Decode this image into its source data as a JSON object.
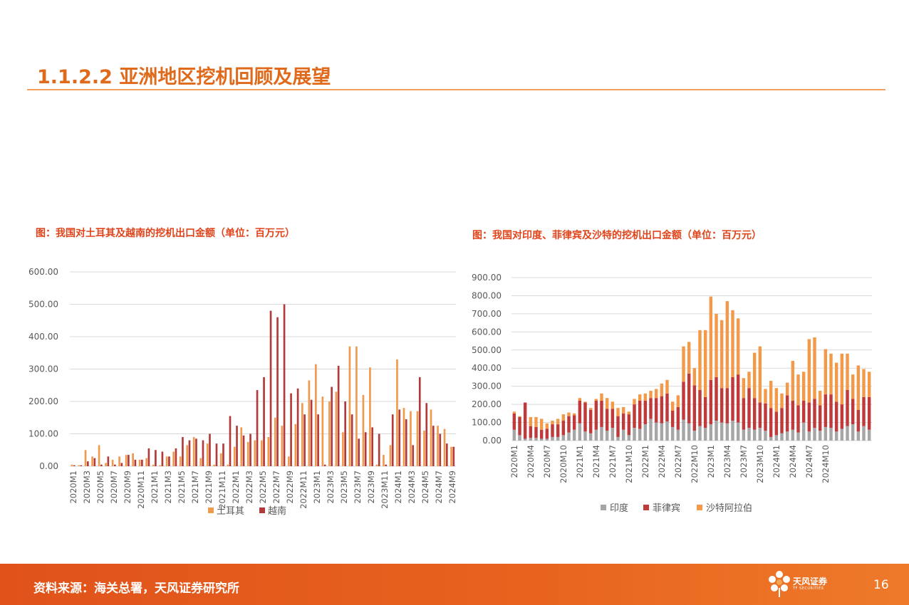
{
  "section": {
    "title": "1.1.2.2 亚洲地区挖机回顾及展望"
  },
  "figures": [
    {
      "caption": "图：我国对土耳其及越南的挖机出口金额（单位：百万元）"
    },
    {
      "caption": "图：我国对印度、菲律宾及沙特的挖机出口金额（单位：百万元）"
    }
  ],
  "footer": {
    "source": "资料来源：海关总署，天风证券研究所",
    "page": "16",
    "logo_cn": "天风证券",
    "logo_en": "TF SECURITIES"
  },
  "colors": {
    "turkey": "#F09A4E",
    "vietnam": "#B23A3A",
    "india": "#A6A6A6",
    "philippines": "#C0393B",
    "saudi": "#F29A4A",
    "accent": "#E06A1B"
  },
  "chart_data": [
    {
      "type": "bar",
      "title": "",
      "ylim": [
        0,
        600
      ],
      "yticks": [
        "0.00",
        "100.00",
        "200.00",
        "300.00",
        "400.00",
        "500.00",
        "600.00"
      ],
      "x_tick_labels": [
        "2020M1",
        "2020M3",
        "2020M5",
        "2020M7",
        "2020M9",
        "2020M11",
        "2021M1",
        "2021M3",
        "2021M5",
        "2021M7",
        "2021M9",
        "2021M11",
        "2022M1",
        "2022M3",
        "2022M5",
        "2022M7",
        "2022M9",
        "2022M11",
        "2023M1",
        "2023M3",
        "2023M5",
        "2023M7",
        "2023M9",
        "2023M11",
        "2024M1",
        "2024M3",
        "2024M5",
        "2024M7",
        "2024M9"
      ],
      "legend_position": "bottom",
      "series": [
        {
          "name": "土耳其",
          "values": [
            5,
            3,
            50,
            30,
            65,
            10,
            20,
            30,
            35,
            40,
            20,
            25,
            5,
            3,
            30,
            45,
            30,
            65,
            90,
            25,
            70,
            5,
            40,
            5,
            60,
            120,
            75,
            80,
            80,
            90,
            150,
            125,
            30,
            130,
            195,
            265,
            315,
            215,
            200,
            230,
            105,
            370,
            370,
            220,
            305,
            5,
            35,
            65,
            330,
            180,
            170,
            170,
            110,
            175,
            125,
            115,
            60
          ]
        },
        {
          "name": "越南",
          "values": [
            3,
            3,
            15,
            25,
            5,
            30,
            5,
            10,
            35,
            20,
            20,
            55,
            50,
            45,
            30,
            55,
            90,
            80,
            85,
            80,
            100,
            70,
            70,
            155,
            125,
            95,
            100,
            235,
            275,
            480,
            460,
            500,
            225,
            240,
            160,
            205,
            160,
            5,
            245,
            310,
            200,
            160,
            85,
            105,
            120,
            100,
            5,
            160,
            175,
            145,
            65,
            275,
            195,
            125,
            100,
            70,
            60
          ]
        }
      ]
    },
    {
      "type": "bar",
      "stacked": true,
      "title": "",
      "ylim": [
        0,
        900
      ],
      "yticks": [
        "0.00",
        "100.00",
        "200.00",
        "300.00",
        "400.00",
        "500.00",
        "600.00",
        "700.00",
        "800.00",
        "900.00"
      ],
      "x_tick_labels": [
        "2020M1",
        "2020M4",
        "2020M7",
        "2020M10",
        "2021M1",
        "2021M4",
        "2021M7",
        "2021M10",
        "2022M1",
        "2022M4",
        "2022M7",
        "2022M10",
        "2023M1",
        "2023M4",
        "2023M7",
        "2023M10",
        "2024M1",
        "2024M4",
        "2024M7",
        "2024M10"
      ],
      "legend_position": "bottom",
      "series": [
        {
          "name": "印度",
          "values": [
            60,
            30,
            10,
            15,
            15,
            10,
            10,
            20,
            20,
            30,
            45,
            60,
            95,
            50,
            40,
            60,
            75,
            55,
            70,
            20,
            60,
            30,
            70,
            65,
            90,
            120,
            100,
            95,
            105,
            75,
            60,
            115,
            95,
            55,
            80,
            70,
            90,
            110,
            100,
            95,
            110,
            100,
            60,
            70,
            60,
            70,
            55,
            20,
            30,
            40,
            50,
            60,
            45,
            100,
            50,
            70,
            55,
            75,
            70,
            50,
            65,
            80,
            90,
            50,
            80,
            60
          ]
        },
        {
          "name": "菲律宾",
          "values": [
            90,
            100,
            200,
            65,
            60,
            50,
            55,
            70,
            70,
            80,
            90,
            80,
            125,
            160,
            130,
            160,
            145,
            120,
            105,
            115,
            90,
            115,
            130,
            155,
            130,
            115,
            135,
            150,
            155,
            90,
            125,
            210,
            275,
            250,
            200,
            170,
            245,
            240,
            190,
            195,
            240,
            265,
            175,
            220,
            175,
            140,
            150,
            160,
            130,
            140,
            200,
            160,
            150,
            120,
            160,
            160,
            140,
            180,
            185,
            165,
            135,
            200,
            140,
            120,
            160,
            180
          ]
        },
        {
          "name": "沙特阿拉伯",
          "values": [
            10,
            5,
            0,
            50,
            55,
            60,
            30,
            20,
            30,
            35,
            20,
            10,
            15,
            5,
            10,
            10,
            40,
            60,
            40,
            45,
            35,
            15,
            30,
            35,
            40,
            40,
            50,
            70,
            75,
            50,
            65,
            195,
            175,
            95,
            330,
            370,
            460,
            350,
            375,
            480,
            370,
            310,
            110,
            90,
            250,
            310,
            80,
            150,
            130,
            80,
            70,
            220,
            170,
            160,
            350,
            340,
            80,
            250,
            225,
            215,
            280,
            200,
            135,
            245,
            155,
            140
          ]
        }
      ]
    }
  ]
}
